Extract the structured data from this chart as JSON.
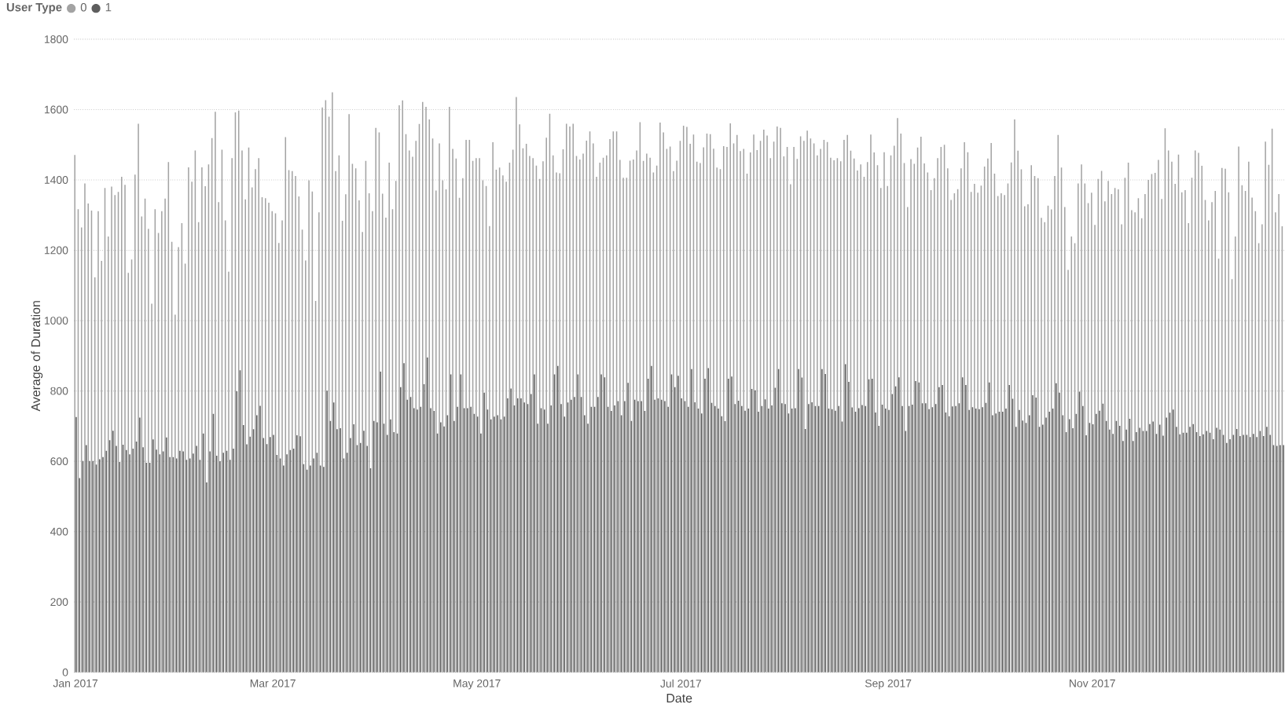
{
  "chart_data": {
    "type": "bar",
    "xlabel": "Date",
    "ylabel": "Average of Duration",
    "legend_title": "User Type",
    "legend": "top left",
    "grid": "y",
    "ylim": [
      0,
      1800
    ],
    "yticks": [
      0,
      200,
      400,
      600,
      800,
      1000,
      1200,
      1400,
      1600,
      1800
    ],
    "xlim": [
      "2016-12-31T12:00",
      "2017-12-28T12:00"
    ],
    "xticks": [
      {
        "value": "2017-01-01",
        "label": "Jan 2017"
      },
      {
        "value": "2017-03-01",
        "label": "Mar 2017"
      },
      {
        "value": "2017-05-01",
        "label": "May 2017"
      },
      {
        "value": "2017-07-01",
        "label": "Jul 2017"
      },
      {
        "value": "2017-09-01",
        "label": "Sep 2017"
      },
      {
        "value": "2017-11-01",
        "label": "Nov 2017"
      }
    ],
    "x": [
      "2017-01-01",
      "2017-01-02",
      "2017-01-03",
      "2017-01-04",
      "2017-01-05",
      "2017-01-06",
      "2017-01-07",
      "2017-01-08",
      "2017-01-09",
      "2017-01-10",
      "2017-01-11",
      "2017-01-12",
      "2017-01-13",
      "2017-01-14",
      "2017-01-15",
      "2017-01-16",
      "2017-01-17",
      "2017-01-18",
      "2017-01-19",
      "2017-01-20",
      "2017-01-21",
      "2017-01-22",
      "2017-01-23",
      "2017-01-24",
      "2017-01-25",
      "2017-01-26",
      "2017-01-27",
      "2017-01-28",
      "2017-01-29",
      "2017-01-30",
      "2017-01-31",
      "2017-02-01",
      "2017-02-02",
      "2017-02-03",
      "2017-02-04",
      "2017-02-05",
      "2017-02-06",
      "2017-02-07",
      "2017-02-08",
      "2017-02-09",
      "2017-02-10",
      "2017-02-11",
      "2017-02-12",
      "2017-02-13",
      "2017-02-14",
      "2017-02-15",
      "2017-02-16",
      "2017-02-17",
      "2017-02-18",
      "2017-02-19",
      "2017-02-20",
      "2017-02-21",
      "2017-02-22",
      "2017-02-23",
      "2017-02-24",
      "2017-02-25",
      "2017-02-26",
      "2017-02-27",
      "2017-02-28",
      "2017-03-01",
      "2017-03-02",
      "2017-03-03",
      "2017-03-04",
      "2017-03-05",
      "2017-03-06",
      "2017-03-07",
      "2017-03-08",
      "2017-03-09",
      "2017-03-10",
      "2017-03-11",
      "2017-03-12",
      "2017-03-13",
      "2017-03-14",
      "2017-03-15",
      "2017-03-16",
      "2017-03-17",
      "2017-03-18",
      "2017-03-19",
      "2017-03-20",
      "2017-03-21",
      "2017-03-22",
      "2017-03-23",
      "2017-03-24",
      "2017-03-25",
      "2017-03-26",
      "2017-03-27",
      "2017-03-28",
      "2017-03-29",
      "2017-03-30",
      "2017-03-31",
      "2017-04-01",
      "2017-04-02",
      "2017-04-03",
      "2017-04-04",
      "2017-04-05",
      "2017-04-06",
      "2017-04-07",
      "2017-04-08",
      "2017-04-09",
      "2017-04-10",
      "2017-04-11",
      "2017-04-12",
      "2017-04-13",
      "2017-04-14",
      "2017-04-15",
      "2017-04-16",
      "2017-04-17",
      "2017-04-18",
      "2017-04-19",
      "2017-04-20",
      "2017-04-21",
      "2017-04-22",
      "2017-04-23",
      "2017-04-24",
      "2017-04-25",
      "2017-04-26",
      "2017-04-27",
      "2017-04-28",
      "2017-04-29",
      "2017-04-30",
      "2017-05-01",
      "2017-05-02",
      "2017-05-03",
      "2017-05-04",
      "2017-05-05",
      "2017-05-06",
      "2017-05-07",
      "2017-05-08",
      "2017-05-09",
      "2017-05-10",
      "2017-05-11",
      "2017-05-12",
      "2017-05-13",
      "2017-05-14",
      "2017-05-15",
      "2017-05-16",
      "2017-05-17",
      "2017-05-18",
      "2017-05-19",
      "2017-05-20",
      "2017-05-21",
      "2017-05-22",
      "2017-05-23",
      "2017-05-24",
      "2017-05-25",
      "2017-05-26",
      "2017-05-27",
      "2017-05-28",
      "2017-05-29",
      "2017-05-30",
      "2017-05-31",
      "2017-06-01",
      "2017-06-02",
      "2017-06-03",
      "2017-06-04",
      "2017-06-05",
      "2017-06-06",
      "2017-06-07",
      "2017-06-08",
      "2017-06-09",
      "2017-06-10",
      "2017-06-11",
      "2017-06-12",
      "2017-06-13",
      "2017-06-14",
      "2017-06-15",
      "2017-06-16",
      "2017-06-17",
      "2017-06-18",
      "2017-06-19",
      "2017-06-20",
      "2017-06-21",
      "2017-06-22",
      "2017-06-23",
      "2017-06-24",
      "2017-06-25",
      "2017-06-26",
      "2017-06-27",
      "2017-06-28",
      "2017-06-29",
      "2017-06-30",
      "2017-07-01",
      "2017-07-02",
      "2017-07-03",
      "2017-07-04",
      "2017-07-05",
      "2017-07-06",
      "2017-07-07",
      "2017-07-08",
      "2017-07-09",
      "2017-07-10",
      "2017-07-11",
      "2017-07-12",
      "2017-07-13",
      "2017-07-14",
      "2017-07-15",
      "2017-07-16",
      "2017-07-17",
      "2017-07-18",
      "2017-07-19",
      "2017-07-20",
      "2017-07-21",
      "2017-07-22",
      "2017-07-23",
      "2017-07-24",
      "2017-07-25",
      "2017-07-26",
      "2017-07-27",
      "2017-07-28",
      "2017-07-29",
      "2017-07-30",
      "2017-07-31",
      "2017-08-01",
      "2017-08-02",
      "2017-08-03",
      "2017-08-04",
      "2017-08-05",
      "2017-08-06",
      "2017-08-07",
      "2017-08-08",
      "2017-08-09",
      "2017-08-10",
      "2017-08-11",
      "2017-08-12",
      "2017-08-13",
      "2017-08-14",
      "2017-08-15",
      "2017-08-16",
      "2017-08-17",
      "2017-08-18",
      "2017-08-19",
      "2017-08-20",
      "2017-08-21",
      "2017-08-22",
      "2017-08-23",
      "2017-08-24",
      "2017-08-25",
      "2017-08-26",
      "2017-08-27",
      "2017-08-28",
      "2017-08-29",
      "2017-08-30",
      "2017-08-31",
      "2017-09-01",
      "2017-09-02",
      "2017-09-03",
      "2017-09-04",
      "2017-09-05",
      "2017-09-06",
      "2017-09-07",
      "2017-09-08",
      "2017-09-09",
      "2017-09-10",
      "2017-09-11",
      "2017-09-12",
      "2017-09-13",
      "2017-09-14",
      "2017-09-15",
      "2017-09-16",
      "2017-09-17",
      "2017-09-18",
      "2017-09-19",
      "2017-09-20",
      "2017-09-21",
      "2017-09-22",
      "2017-09-23",
      "2017-09-24",
      "2017-09-25",
      "2017-09-26",
      "2017-09-27",
      "2017-09-28",
      "2017-09-29",
      "2017-09-30",
      "2017-10-01",
      "2017-10-02",
      "2017-10-03",
      "2017-10-04",
      "2017-10-05",
      "2017-10-06",
      "2017-10-07",
      "2017-10-08",
      "2017-10-09",
      "2017-10-10",
      "2017-10-11",
      "2017-10-12",
      "2017-10-13",
      "2017-10-14",
      "2017-10-15",
      "2017-10-16",
      "2017-10-17",
      "2017-10-18",
      "2017-10-19",
      "2017-10-20",
      "2017-10-21",
      "2017-10-22",
      "2017-10-23",
      "2017-10-24",
      "2017-10-25",
      "2017-10-26",
      "2017-10-27",
      "2017-10-28",
      "2017-10-29",
      "2017-10-30",
      "2017-10-31",
      "2017-11-01",
      "2017-11-02",
      "2017-11-03",
      "2017-11-04",
      "2017-11-05",
      "2017-11-06",
      "2017-11-07",
      "2017-11-08",
      "2017-11-09",
      "2017-11-10",
      "2017-11-11",
      "2017-11-12",
      "2017-11-13",
      "2017-11-14",
      "2017-11-15",
      "2017-11-16",
      "2017-11-17",
      "2017-11-18",
      "2017-11-19",
      "2017-11-20",
      "2017-11-21",
      "2017-11-22",
      "2017-11-23",
      "2017-11-24",
      "2017-11-25",
      "2017-11-26",
      "2017-11-27",
      "2017-11-28",
      "2017-11-29",
      "2017-11-30",
      "2017-12-01",
      "2017-12-02",
      "2017-12-03",
      "2017-12-04",
      "2017-12-05",
      "2017-12-06",
      "2017-12-07",
      "2017-12-08",
      "2017-12-09",
      "2017-12-10",
      "2017-12-11",
      "2017-12-12",
      "2017-12-13",
      "2017-12-14",
      "2017-12-15",
      "2017-12-16",
      "2017-12-17",
      "2017-12-18",
      "2017-12-19",
      "2017-12-20",
      "2017-12-21",
      "2017-12-22",
      "2017-12-23",
      "2017-12-24",
      "2017-12-25",
      "2017-12-26",
      "2017-12-27",
      "2017-12-28"
    ],
    "series": [
      {
        "name": "0",
        "color": "#a3a3a3",
        "values": [
          1471,
          1317,
          1265,
          1390,
          1333,
          1313,
          1123,
          1311,
          1170,
          1377,
          1239,
          1381,
          1357,
          1366,
          1409,
          1386,
          1136,
          1174,
          1415,
          1560,
          1296,
          1347,
          1261,
          1048,
          1317,
          1249,
          1311,
          1347,
          1451,
          1224,
          1017,
          1209,
          1277,
          1162,
          1436,
          1395,
          1484,
          1280,
          1436,
          1382,
          1444,
          1519,
          1594,
          1337,
          1486,
          1285,
          1139,
          1462,
          1592,
          1597,
          1484,
          1345,
          1492,
          1379,
          1431,
          1462,
          1351,
          1348,
          1335,
          1311,
          1305,
          1221,
          1285,
          1522,
          1428,
          1425,
          1411,
          1353,
          1259,
          1171,
          1399,
          1367,
          1056,
          1308,
          1606,
          1627,
          1580,
          1649,
          1425,
          1470,
          1284,
          1359,
          1587,
          1446,
          1433,
          1342,
          1252,
          1454,
          1362,
          1311,
          1548,
          1535,
          1361,
          1293,
          1449,
          1317,
          1397,
          1612,
          1626,
          1530,
          1484,
          1466,
          1511,
          1559,
          1622,
          1608,
          1572,
          1518,
          1370,
          1504,
          1399,
          1373,
          1608,
          1488,
          1461,
          1349,
          1405,
          1514,
          1514,
          1454,
          1462,
          1462,
          1399,
          1383,
          1269,
          1507,
          1429,
          1435,
          1413,
          1395,
          1449,
          1486,
          1636,
          1558,
          1490,
          1503,
          1468,
          1462,
          1441,
          1403,
          1453,
          1520,
          1588,
          1470,
          1421,
          1419,
          1487,
          1560,
          1552,
          1560,
          1468,
          1458,
          1475,
          1512,
          1538,
          1504,
          1409,
          1449,
          1463,
          1470,
          1516,
          1538,
          1538,
          1457,
          1406,
          1406,
          1455,
          1458,
          1484,
          1564,
          1454,
          1475,
          1463,
          1421,
          1441,
          1563,
          1535,
          1488,
          1495,
          1425,
          1455,
          1511,
          1554,
          1551,
          1503,
          1529,
          1452,
          1448,
          1493,
          1532,
          1530,
          1489,
          1435,
          1431,
          1496,
          1494,
          1561,
          1504,
          1528,
          1482,
          1488,
          1418,
          1478,
          1529,
          1485,
          1511,
          1543,
          1526,
          1462,
          1509,
          1552,
          1548,
          1467,
          1494,
          1388,
          1494,
          1460,
          1524,
          1511,
          1540,
          1518,
          1504,
          1470,
          1488,
          1514,
          1508,
          1463,
          1456,
          1462,
          1453,
          1514,
          1528,
          1483,
          1461,
          1427,
          1444,
          1409,
          1451,
          1529,
          1478,
          1442,
          1377,
          1479,
          1383,
          1470,
          1497,
          1576,
          1532,
          1448,
          1323,
          1459,
          1446,
          1492,
          1523,
          1447,
          1421,
          1371,
          1405,
          1462,
          1494,
          1500,
          1433,
          1343,
          1362,
          1374,
          1433,
          1507,
          1479,
          1366,
          1389,
          1364,
          1384,
          1438,
          1461,
          1505,
          1418,
          1354,
          1362,
          1357,
          1390,
          1450,
          1572,
          1483,
          1430,
          1325,
          1331,
          1442,
          1411,
          1405,
          1292,
          1280,
          1327,
          1316,
          1411,
          1528,
          1435,
          1323,
          1144,
          1239,
          1220,
          1390,
          1444,
          1390,
          1334,
          1364,
          1272,
          1403,
          1426,
          1339,
          1397,
          1360,
          1377,
          1373,
          1274,
          1406,
          1449,
          1314,
          1308,
          1348,
          1291,
          1360,
          1400,
          1417,
          1420,
          1457,
          1346,
          1547,
          1484,
          1452,
          1389,
          1472,
          1365,
          1371,
          1277,
          1406,
          1484,
          1477,
          1440,
          1343,
          1285,
          1337,
          1369,
          1176,
          1434,
          1432,
          1365,
          1118,
          1239,
          1495,
          1385,
          1369,
          1452,
          1350,
          1311,
          1220,
          1274,
          1509,
          1443,
          1546,
          1308,
          1360,
          1268
        ]
      },
      {
        "name": "1",
        "color": "#5e5e5e",
        "values": [
          726,
          552,
          601,
          646,
          601,
          601,
          591,
          606,
          612,
          630,
          660,
          687,
          644,
          598,
          647,
          632,
          620,
          636,
          656,
          724,
          640,
          596,
          596,
          662,
          633,
          620,
          628,
          668,
          612,
          612,
          608,
          630,
          628,
          604,
          608,
          622,
          644,
          604,
          679,
          540,
          628,
          735,
          616,
          600,
          624,
          630,
          604,
          636,
          799,
          859,
          703,
          648,
          670,
          691,
          731,
          758,
          666,
          649,
          669,
          675,
          618,
          608,
          588,
          620,
          632,
          636,
          674,
          671,
          592,
          576,
          588,
          608,
          624,
          588,
          584,
          801,
          715,
          767,
          691,
          694,
          608,
          624,
          666,
          705,
          646,
          652,
          687,
          644,
          580,
          715,
          711,
          855,
          707,
          675,
          719,
          683,
          679,
          811,
          879,
          775,
          783,
          751,
          747,
          755,
          819,
          895,
          751,
          743,
          679,
          711,
          699,
          731,
          847,
          715,
          755,
          847,
          751,
          751,
          755,
          735,
          727,
          679,
          795,
          747,
          719,
          727,
          731,
          719,
          727,
          779,
          807,
          759,
          779,
          779,
          767,
          763,
          791,
          847,
          707,
          751,
          747,
          707,
          759,
          847,
          871,
          763,
          727,
          767,
          775,
          783,
          847,
          783,
          731,
          707,
          755,
          755,
          783,
          847,
          839,
          755,
          743,
          759,
          771,
          731,
          771,
          823,
          715,
          775,
          771,
          771,
          743,
          835,
          871,
          775,
          779,
          775,
          771,
          755,
          847,
          811,
          843,
          779,
          771,
          755,
          862,
          768,
          750,
          736,
          835,
          865,
          766,
          757,
          750,
          728,
          714,
          835,
          841,
          763,
          772,
          757,
          744,
          750,
          806,
          802,
          741,
          757,
          776,
          750,
          759,
          809,
          862,
          765,
          763,
          736,
          750,
          751,
          862,
          838,
          692,
          763,
          768,
          757,
          757,
          862,
          848,
          750,
          748,
          744,
          757,
          713,
          876,
          826,
          753,
          741,
          751,
          760,
          757,
          833,
          835,
          739,
          701,
          761,
          750,
          746,
          791,
          813,
          839,
          757,
          686,
          757,
          761,
          828,
          824,
          765,
          765,
          748,
          754,
          763,
          811,
          817,
          739,
          728,
          756,
          757,
          765,
          839,
          817,
          746,
          754,
          750,
          748,
          754,
          766,
          824,
          731,
          736,
          741,
          741,
          750,
          817,
          778,
          698,
          746,
          716,
          709,
          731,
          788,
          781,
          698,
          704,
          724,
          741,
          750,
          822,
          795,
          731,
          683,
          720,
          694,
          735,
          798,
          757,
          674,
          709,
          705,
          735,
          744,
          764,
          715,
          690,
          678,
          715,
          701,
          658,
          690,
          721,
          658,
          683,
          695,
          686,
          686,
          706,
          713,
          678,
          704,
          673,
          724,
          738,
          747,
          698,
          677,
          681,
          681,
          698,
          706,
          683,
          672,
          677,
          686,
          681,
          663,
          695,
          690,
          675,
          652,
          663,
          675,
          692,
          672,
          675,
          675,
          669,
          678,
          669,
          686,
          672,
          698,
          675,
          646,
          644,
          646,
          646
        ]
      }
    ]
  }
}
